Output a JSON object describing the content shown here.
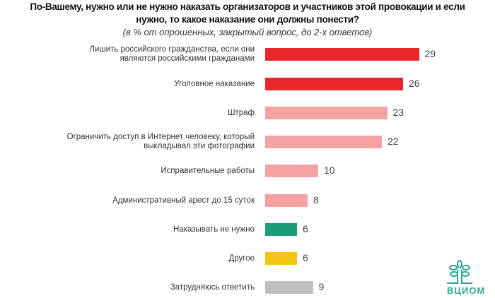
{
  "chart_data": {
    "type": "bar",
    "title": "По-Вашему, нужно или не нужно наказать организаторов и участников этой провокации и если нужно, то какое наказание они должны понести?",
    "title_lines": [
      "По-Вашему, нужно или не нужно наказать организаторов и участников этой провокации и если",
      "нужно, то какое наказание они должны понести?"
    ],
    "subtitle": "(в % от опрошенных, закрытый вопрос, до 2-х ответов)",
    "categories": [
      [
        "Лишить российского гражданства, если они",
        "являются российскими гражданами"
      ],
      [
        "Уголовное наказание"
      ],
      [
        "Штраф"
      ],
      [
        "Ограничить доступ в Интернет человеку, который",
        "выкладывал эти фотографии"
      ],
      [
        "Исправительные работы"
      ],
      [
        "Административный арест до 15 суток"
      ],
      [
        "Наказывать не нужно"
      ],
      [
        "Другое"
      ],
      [
        "Затрудняюсь ответить"
      ]
    ],
    "values": [
      29,
      26,
      23,
      22,
      10,
      8,
      6,
      6,
      9
    ],
    "colors": [
      "#e8272b",
      "#e8272b",
      "#f4a2a2",
      "#f4a2a2",
      "#f4a2a2",
      "#f4a2a2",
      "#1a9c7d",
      "#f6c414",
      "#bfbfbf"
    ],
    "xlim": [
      0,
      30
    ]
  },
  "logo": {
    "text": "ВЦИОМ",
    "color": "#2aa795"
  }
}
